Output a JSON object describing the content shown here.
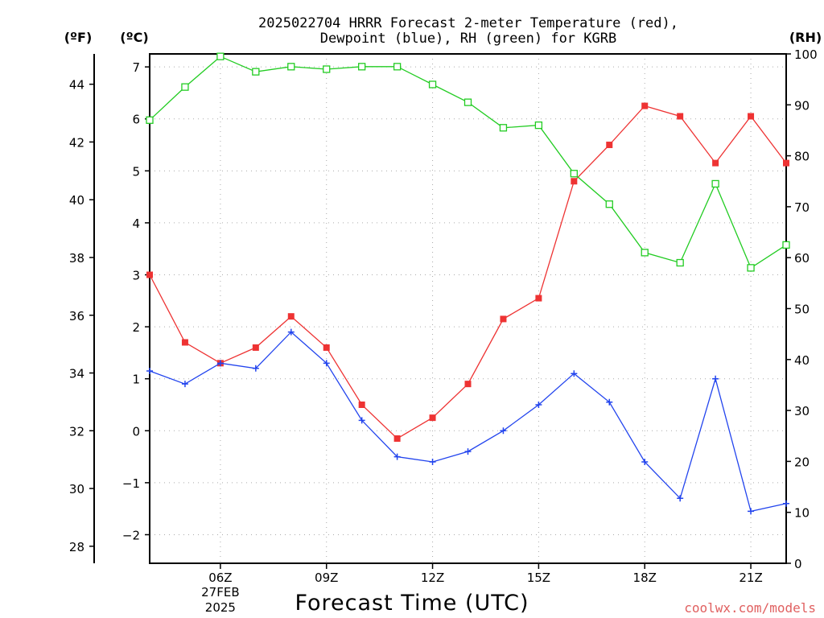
{
  "chart_data": {
    "type": "line",
    "title_line1": "2025022704 HRRR Forecast 2-meter Temperature (red),",
    "title_line2": "Dewpoint (blue), RH (green) for KGRB",
    "xlabel": "Forecast Time (UTC)",
    "credit": "coolwx.com/models",
    "units": {
      "fahrenheit": "(ºF)",
      "celsius": "(ºC)",
      "rh": "(RH)"
    },
    "hours": [
      4,
      5,
      6,
      7,
      8,
      9,
      10,
      11,
      12,
      13,
      14,
      15,
      16,
      17,
      18,
      19,
      20,
      21,
      22
    ],
    "xlim": [
      4,
      22
    ],
    "x_ticks": [
      {
        "hour": 6,
        "label": "06Z",
        "sub1": "27FEB",
        "sub2": "2025"
      },
      {
        "hour": 9,
        "label": "09Z"
      },
      {
        "hour": 12,
        "label": "12Z"
      },
      {
        "hour": 15,
        "label": "15Z"
      },
      {
        "hour": 18,
        "label": "18Z"
      },
      {
        "hour": 21,
        "label": "21Z"
      }
    ],
    "celsius_axis": {
      "ylim": [
        -2.55,
        7.25
      ],
      "ticks": [
        -2,
        -1,
        0,
        1,
        2,
        3,
        4,
        5,
        6,
        7
      ]
    },
    "fahrenheit_axis": {
      "ticks": [
        28,
        30,
        32,
        34,
        36,
        38,
        40,
        42,
        44
      ]
    },
    "rh_axis": {
      "ylim": [
        0,
        100
      ],
      "ticks": [
        0,
        10,
        20,
        30,
        40,
        50,
        60,
        70,
        80,
        90,
        100
      ]
    },
    "grid": true,
    "series": [
      {
        "name": "Temperature",
        "axis": "celsius",
        "color": "#ee3333",
        "marker": "filled-square",
        "values": [
          3.0,
          1.7,
          1.3,
          1.6,
          2.2,
          1.6,
          0.5,
          -0.15,
          0.25,
          0.9,
          2.15,
          2.55,
          4.8,
          5.5,
          6.25,
          6.05,
          5.15,
          6.05,
          5.15
        ]
      },
      {
        "name": "Dewpoint",
        "axis": "celsius",
        "color": "#2244ee",
        "marker": "plus",
        "values": [
          1.15,
          0.9,
          1.3,
          1.2,
          1.9,
          1.3,
          0.2,
          -0.5,
          -0.6,
          -0.4,
          0.0,
          0.5,
          1.1,
          0.55,
          -0.6,
          -1.3,
          1.0,
          -1.55,
          -1.4
        ]
      },
      {
        "name": "RH",
        "axis": "rh",
        "color": "#22cc22",
        "marker": "open-square",
        "values": [
          87,
          93.5,
          99.5,
          96.5,
          97.5,
          97,
          97.5,
          97.5,
          94,
          90.5,
          85.5,
          86,
          76.5,
          70.5,
          61,
          59,
          74.5,
          58,
          62.5
        ]
      }
    ]
  }
}
